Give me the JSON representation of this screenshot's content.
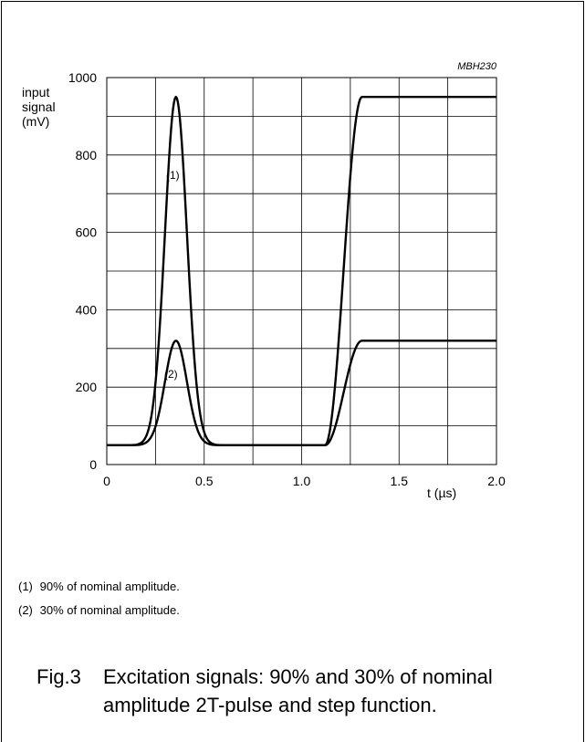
{
  "chart_data": {
    "type": "line",
    "code": "MBH230",
    "ylabel_lines": [
      "input",
      "signal",
      "(mV)"
    ],
    "xlabel": "t (µs)",
    "xlim": [
      0,
      2.0
    ],
    "ylim": [
      0,
      1000
    ],
    "x_ticks": [
      {
        "value": 0,
        "label": "0"
      },
      {
        "value": 0.5,
        "label": "0.5"
      },
      {
        "value": 1.0,
        "label": "1.0"
      },
      {
        "value": 1.5,
        "label": "1.5"
      },
      {
        "value": 2.0,
        "label": "2.0"
      }
    ],
    "y_ticks": [
      {
        "value": 0,
        "label": "0"
      },
      {
        "value": 200,
        "label": "200"
      },
      {
        "value": 400,
        "label": "400"
      },
      {
        "value": 600,
        "label": "600"
      },
      {
        "value": 800,
        "label": "800"
      },
      {
        "value": 1000,
        "label": "1000"
      }
    ],
    "grid": true,
    "series": [
      {
        "label": "(1)",
        "baseline": 50,
        "peak": 950,
        "x": [
          0,
          0.16,
          0.2,
          0.25,
          0.3,
          0.36,
          0.42,
          0.47,
          0.52,
          0.55,
          1.12,
          1.16,
          1.21,
          1.26,
          1.31,
          2.0
        ],
        "y": [
          50,
          50,
          150,
          560,
          850,
          950,
          820,
          480,
          160,
          50,
          50,
          150,
          500,
          850,
          950,
          950
        ]
      },
      {
        "label": "(2)",
        "baseline": 50,
        "peak": 320,
        "x": [
          0,
          0.16,
          0.2,
          0.25,
          0.3,
          0.36,
          0.42,
          0.47,
          0.52,
          0.55,
          1.12,
          1.16,
          1.21,
          1.26,
          1.31,
          2.0
        ],
        "y": [
          50,
          50,
          90,
          200,
          290,
          320,
          280,
          180,
          90,
          50,
          50,
          90,
          190,
          290,
          320,
          320
        ]
      }
    ]
  },
  "notes": [
    {
      "num": "(1)",
      "text": "90% of nominal amplitude."
    },
    {
      "num": "(2)",
      "text": "30% of nominal amplitude."
    }
  ],
  "caption": {
    "fig": "Fig.3",
    "line1": "Excitation signals: 90% and 30% of nominal",
    "line2": "amplitude 2T-pulse and step function."
  }
}
